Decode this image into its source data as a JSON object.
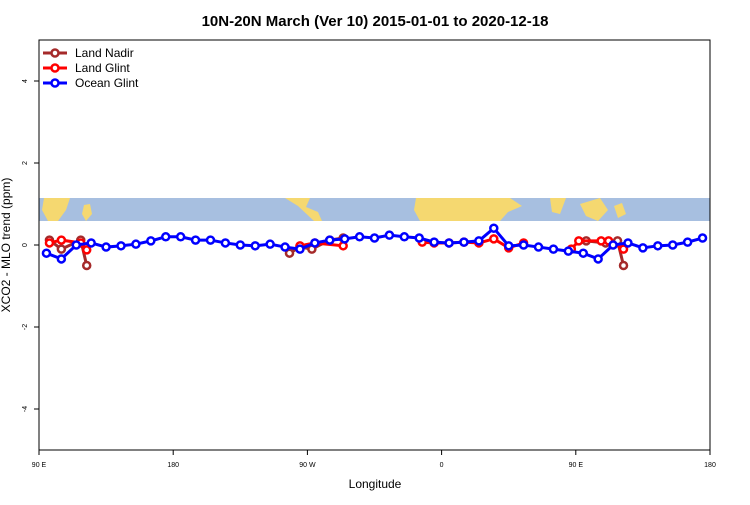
{
  "chart_data": {
    "type": "line",
    "title": "10N-20N March (Ver 10)   2015-01-01 to 2020-12-18",
    "x_label": "Longitude",
    "y_label": "XCO2 - MLO trend (ppm)",
    "xlim": [
      90,
      540
    ],
    "xticks": [
      {
        "value": 90,
        "label": "90 E"
      },
      180,
      {
        "value": 270,
        "label": "90 W"
      },
      {
        "value": 360,
        "label": "0"
      },
      {
        "value": 450,
        "label": "90 E"
      },
      {
        "value": 540,
        "label": "180"
      }
    ],
    "ylim": [
      -5,
      5
    ],
    "yticks": [
      -4,
      -2,
      0,
      2,
      4
    ],
    "legend": "top-left",
    "series": [
      {
        "name": "Land Nadir",
        "color": "#a52a2a",
        "x": [
          97,
          105,
          118,
          122,
          190,
          258,
          265,
          273,
          285,
          294,
          380,
          457,
          470,
          478,
          482
        ],
        "values": [
          0.12,
          -0.1,
          0.12,
          -0.5,
          null,
          -0.2,
          -0.05,
          -0.1,
          0.12,
          0.17,
          null,
          0.1,
          0.05,
          0.1,
          -0.5
        ]
      },
      {
        "name": "Land Glint",
        "color": "#ff0000",
        "x": [
          97,
          105,
          118,
          122,
          190,
          265,
          275,
          294,
          330,
          347,
          355,
          365,
          375,
          385,
          395,
          405,
          415,
          430,
          447,
          452,
          467,
          472,
          482
        ],
        "values": [
          0.05,
          0.12,
          0.05,
          -0.12,
          null,
          -0.02,
          0.05,
          -0.02,
          null,
          0.07,
          0.05,
          0.05,
          0.07,
          0.05,
          0.15,
          -0.07,
          0.05,
          null,
          -0.1,
          0.1,
          0.1,
          0.1,
          -0.1
        ]
      },
      {
        "name": "Ocean Glint",
        "color": "#0000ff",
        "x": [
          95,
          105,
          115,
          125,
          135,
          145,
          155,
          165,
          175,
          185,
          195,
          205,
          215,
          225,
          235,
          245,
          255,
          265,
          275,
          285,
          295,
          305,
          315,
          325,
          335,
          345,
          355,
          365,
          375,
          385,
          395,
          405,
          415,
          425,
          435,
          445,
          455,
          465,
          475,
          485,
          495,
          505,
          515,
          525,
          535
        ],
        "values": [
          -0.2,
          -0.34,
          0,
          0.05,
          -0.05,
          -0.02,
          0.02,
          0.1,
          0.2,
          0.2,
          0.12,
          0.12,
          0.05,
          0,
          -0.02,
          0.02,
          -0.05,
          -0.1,
          0.05,
          0.12,
          0.15,
          0.2,
          0.17,
          0.24,
          0.2,
          0.17,
          0.07,
          0.05,
          0.07,
          0.1,
          0.41,
          -0.02,
          0,
          -0.05,
          -0.1,
          -0.15,
          -0.2,
          -0.34,
          0,
          0.05,
          -0.07,
          -0.02,
          0,
          0.07,
          0.17
        ]
      }
    ]
  }
}
